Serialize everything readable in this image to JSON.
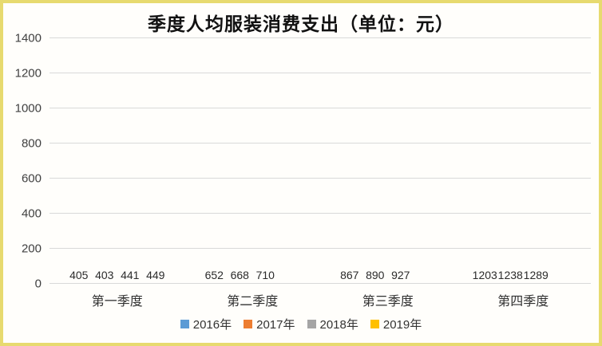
{
  "chart_data": {
    "type": "bar",
    "title": "季度人均服装消费支出（单位：元）",
    "unit": "元",
    "categories": [
      "第一季度",
      "第二季度",
      "第三季度",
      "第四季度"
    ],
    "series": [
      {
        "name": "2016年",
        "color": "#5B9BD5",
        "values": [
          405,
          652,
          867,
          1203
        ]
      },
      {
        "name": "2017年",
        "color": "#ED7D31",
        "values": [
          403,
          668,
          890,
          1238
        ]
      },
      {
        "name": "2018年",
        "color": "#A5A5A5",
        "values": [
          441,
          710,
          927,
          1289
        ]
      },
      {
        "name": "2019年",
        "color": "#FFC000",
        "values": [
          449,
          null,
          null,
          null
        ]
      }
    ],
    "ylim": [
      0,
      1400
    ],
    "ytick_step": 200,
    "y_tick_labels": [
      "0",
      "200",
      "400",
      "600",
      "800",
      "1000",
      "1200",
      "1400"
    ],
    "grid": true,
    "legend_position": "bottom",
    "data_labels": true
  },
  "colors": {
    "frame_border": "#E7DA6F",
    "gridline": "#D9D9D9",
    "axis_text": "#404040",
    "value_text": "#2B2B2B",
    "title_text": "#111111"
  }
}
